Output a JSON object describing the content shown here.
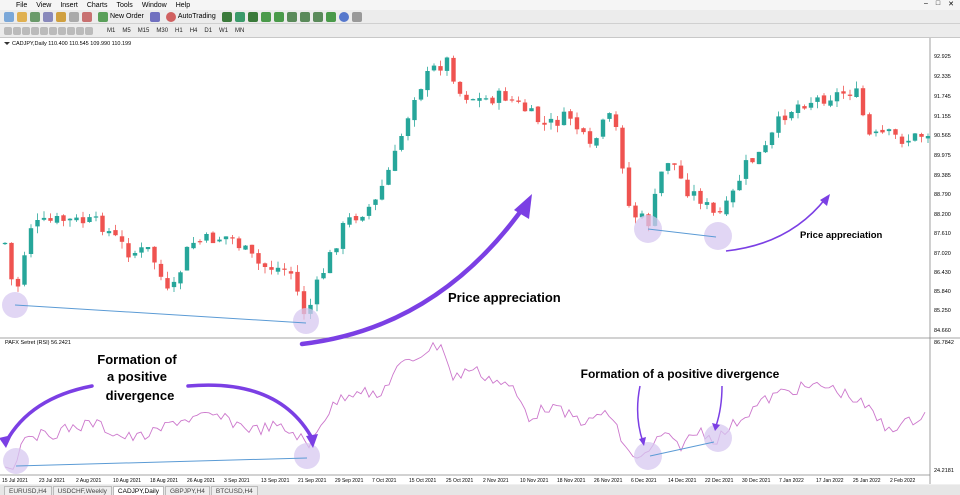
{
  "menu": [
    "File",
    "View",
    "Insert",
    "Charts",
    "Tools",
    "Window",
    "Help"
  ],
  "toolbar": {
    "new_order": "New Order",
    "autotrading": "AutoTrading"
  },
  "timeframes": [
    "M1",
    "M5",
    "M15",
    "M30",
    "H1",
    "H4",
    "D1",
    "W1",
    "MN"
  ],
  "price_panel": {
    "header": "CADJPY,Daily 110.400 110.545 109.990 110.199",
    "price_labels": [
      "92.925",
      "92.335",
      "91.745",
      "91.155",
      "90.565",
      "89.975",
      "89.385",
      "88.790",
      "88.200",
      "87.610",
      "87.020",
      "86.430",
      "85.840",
      "85.250",
      "84.660"
    ],
    "annotation_right": "Price appreciation",
    "annotation_left": "Price appreciation"
  },
  "rsi_panel": {
    "header": "PAFX Setret (RSI) 56.2421",
    "labels": [
      "86.7842",
      "24.2181"
    ],
    "annotation_left": [
      "Formation of",
      "a positive",
      "divergence"
    ],
    "annotation_right": "Formation of a positive divergence"
  },
  "date_labels": [
    "15 Jul 2021",
    "23 Jul 2021",
    "2 Aug 2021",
    "10 Aug 2021",
    "18 Aug 2021",
    "26 Aug 2021",
    "3 Sep 2021",
    "13 Sep 2021",
    "21 Sep 2021",
    "29 Sep 2021",
    "7 Oct 2021",
    "15 Oct 2021",
    "25 Oct 2021",
    "2 Nov 2021",
    "10 Nov 2021",
    "18 Nov 2021",
    "26 Nov 2021",
    "6 Dec 2021",
    "14 Dec 2021",
    "22 Dec 2021",
    "30 Dec 2021",
    "7 Jan 2022",
    "17 Jan 2022",
    "25 Jan 2022",
    "2 Feb 2022"
  ],
  "tabs": [
    "EURUSD,H4",
    "USDCHF,Weekly",
    "CADJPY,Daily",
    "GBPJPY,H4",
    "BTCUSD,H4"
  ],
  "active_tab": "CADJPY,Daily",
  "colors": {
    "bull": "#26a69a",
    "bear": "#ef5350",
    "rsi": "#cc77cc",
    "arrow": "#7b3fe4",
    "circle": "#d7c8f0",
    "trendline": "#5b9bd5"
  }
}
